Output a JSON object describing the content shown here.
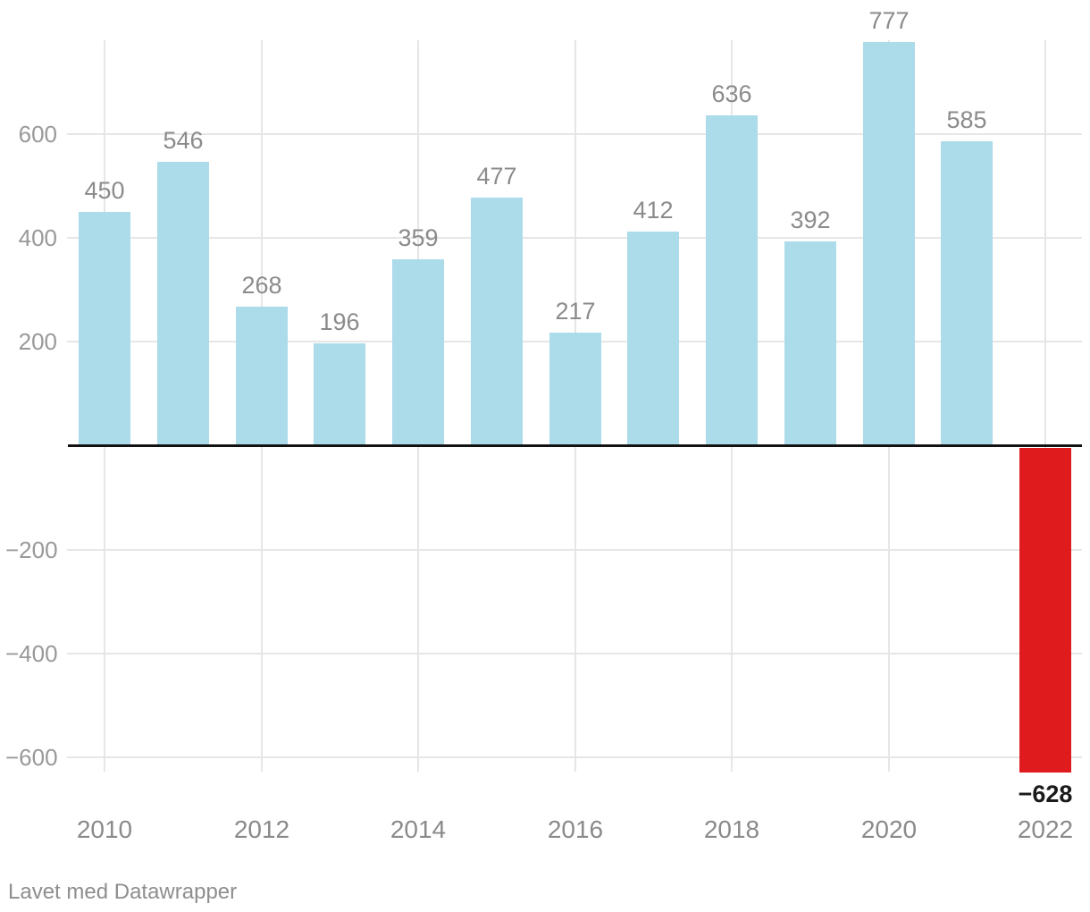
{
  "chart_data": {
    "type": "bar",
    "categories": [
      2010,
      2011,
      2012,
      2013,
      2014,
      2015,
      2016,
      2017,
      2018,
      2019,
      2020,
      2021,
      2022
    ],
    "values": [
      450,
      546,
      268,
      196,
      359,
      477,
      217,
      412,
      636,
      392,
      777,
      585,
      -628
    ],
    "bar_labels": [
      "450",
      "546",
      "268",
      "196",
      "359",
      "477",
      "217",
      "412",
      "636",
      "392",
      "777",
      "585",
      "−628"
    ],
    "x_ticks": [
      2010,
      2012,
      2014,
      2016,
      2018,
      2020,
      2022
    ],
    "x_tick_labels": [
      "2010",
      "2012",
      "2014",
      "2016",
      "2018",
      "2020",
      "2022"
    ],
    "y_ticks": [
      600,
      400,
      200,
      -200,
      -400,
      -600
    ],
    "y_tick_labels": [
      "600",
      "400",
      "200",
      "−200",
      "−400",
      "−600"
    ],
    "title": "",
    "xlabel": "",
    "ylabel": "",
    "ylim": [
      -660,
      780
    ],
    "grid": true,
    "legend_position": "none",
    "colors": {
      "positive_bar": "#acdbea",
      "negative_bar": "#e01b1e",
      "baseline": "#121212",
      "gridline": "#e6e6e6",
      "value_label": "#8b8b8b",
      "negative_value_label": "#1a1a1a",
      "axis_label": "#999999"
    }
  },
  "footer": {
    "attribution": "Lavet med Datawrapper"
  }
}
